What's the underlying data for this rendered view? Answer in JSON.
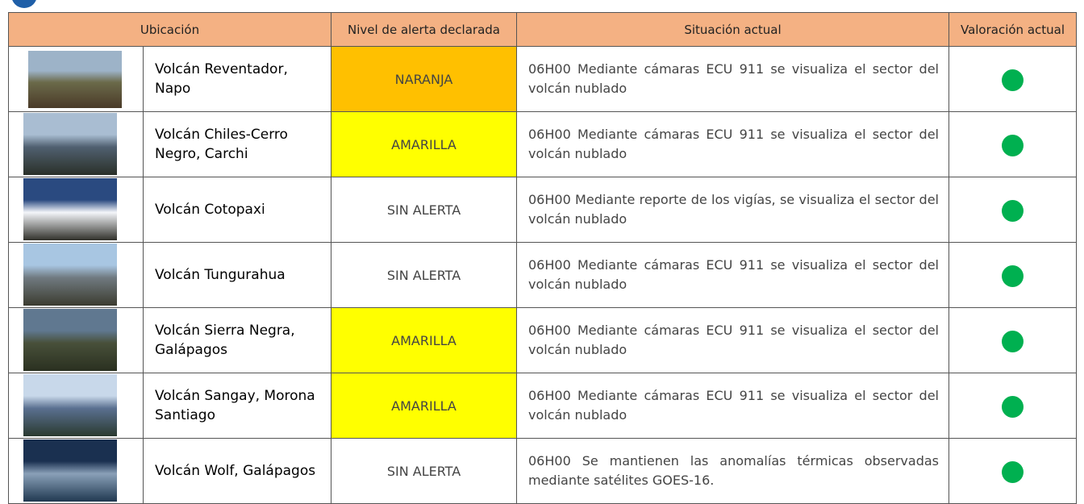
{
  "table": {
    "header": [
      "Ubicación",
      "Nivel de alerta declarada",
      "Situación actual",
      "Valoración actual"
    ],
    "rows": [
      {
        "name": "Volcán Reventador, Napo",
        "level": "NARANJA",
        "level_color": "#ffc000",
        "situation": "06H00 Mediante cámaras ECU 911 se visualiza el sector del volcán nublado"
      },
      {
        "name": "Volcán Chiles-Cerro Negro, Carchi",
        "level": "AMARILLA",
        "level_color": "#ffff00",
        "situation": "06H00 Mediante cámaras ECU 911 se visualiza el sector del volcán nublado"
      },
      {
        "name": "Volcán Cotopaxi",
        "level": "SIN ALERTA",
        "level_color": "#ffffff",
        "situation": "06H00 Mediante reporte de los vigías, se visualiza el sector del volcán nublado"
      },
      {
        "name": "Volcán Tungurahua",
        "level": "SIN ALERTA",
        "level_color": "#ffffff",
        "situation": "06H00 Mediante cámaras ECU 911 se visualiza el sector del volcán nublado"
      },
      {
        "name": "Volcán Sierra Negra, Galápagos",
        "level": "AMARILLA",
        "level_color": "#ffff00",
        "situation": "06H00 Mediante cámaras ECU 911 se visualiza el sector del volcán nublado"
      },
      {
        "name": "Volcán Sangay, Morona Santiago",
        "level": "AMARILLA",
        "level_color": "#ffff00",
        "situation": "06H00 Mediante cámaras ECU 911 se visualiza el sector del volcán nublado"
      },
      {
        "name": "Volcán Wolf, Galápagos",
        "level": "SIN ALERTA",
        "level_color": "#ffffff",
        "situation": "06H00 Se mantienen las anomalías térmicas observadas mediante satélites GOES-16."
      }
    ],
    "status_color": "#00b050"
  }
}
